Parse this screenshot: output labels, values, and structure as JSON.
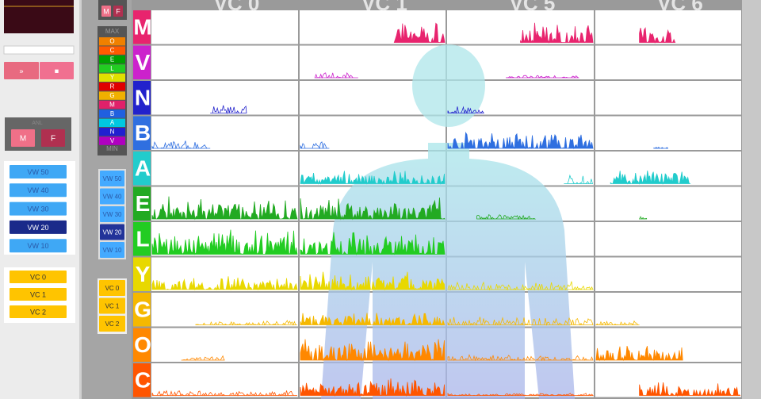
{
  "left_panel": {
    "play_buttons": [
      "»",
      "■"
    ],
    "anl": {
      "label": "ANL",
      "buttons": [
        "M",
        "F"
      ]
    },
    "vw_buttons": [
      "VW 50",
      "VW 40",
      "VW 30",
      "VW 20",
      "VW 10"
    ],
    "vc_buttons": [
      "VC 0",
      "VC 1",
      "VC 2"
    ]
  },
  "side_strip": {
    "anl_buttons": [
      "M",
      "F"
    ],
    "scale": {
      "max": "MAX",
      "levels": [
        "O",
        "C",
        "E",
        "L",
        "Y",
        "R",
        "G",
        "M",
        "B",
        "A",
        "N",
        "V"
      ],
      "min": "MIN"
    },
    "vw_buttons": [
      "VW 50",
      "VW 40",
      "VW 30",
      "VW 20",
      "VW 10"
    ],
    "vc_buttons": [
      "VC 0",
      "VC 1",
      "VC 2"
    ]
  },
  "grid": {
    "columns": [
      "VC 0",
      "VC 1",
      "VC 5",
      "VC 6"
    ],
    "rows": [
      "M",
      "V",
      "N",
      "B",
      "A",
      "E",
      "L",
      "Y",
      "G",
      "O",
      "C"
    ]
  }
}
